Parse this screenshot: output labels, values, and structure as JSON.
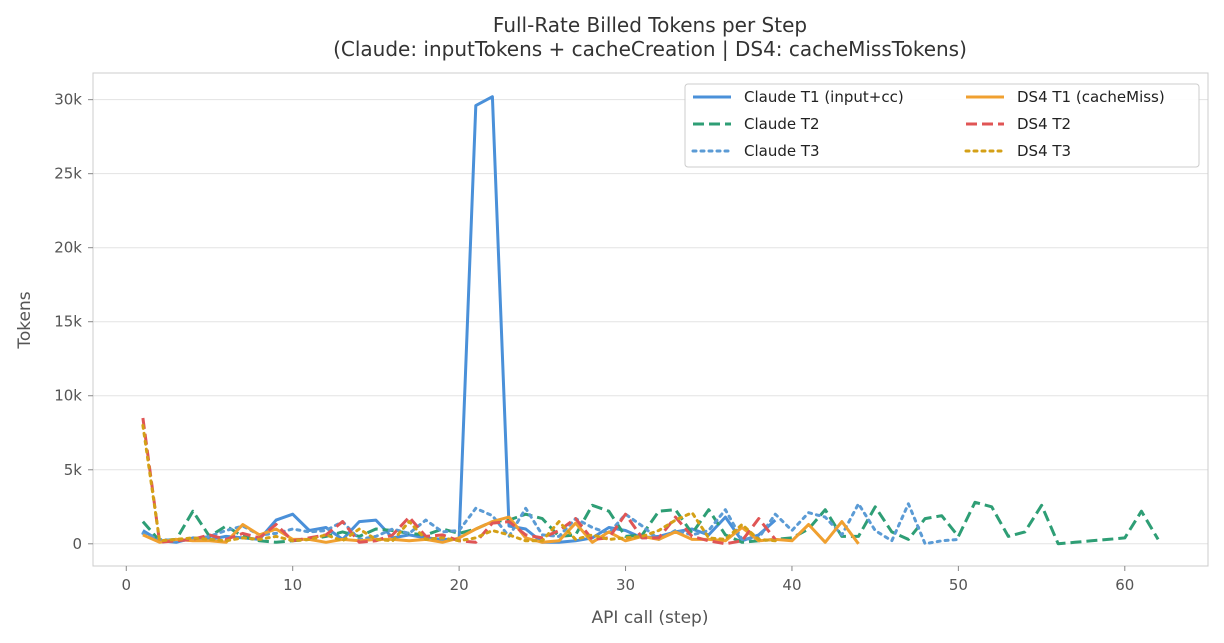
{
  "chart_data": {
    "type": "line",
    "title": "Full-Rate Billed Tokens per Step",
    "subtitle": "(Claude: inputTokens + cacheCreation  |  DS4: cacheMissTokens)",
    "xlabel": "API call (step)",
    "ylabel": "Tokens",
    "xlim": [
      -2,
      65
    ],
    "ylim": [
      -1500,
      31800
    ],
    "x_ticks": [
      0,
      10,
      20,
      30,
      40,
      50,
      60
    ],
    "x_tick_labels": [
      "0",
      "10",
      "20",
      "30",
      "40",
      "50",
      "60"
    ],
    "y_ticks": [
      0,
      5000,
      10000,
      15000,
      20000,
      25000,
      30000
    ],
    "y_tick_labels": [
      "0",
      "5k",
      "10k",
      "15k",
      "20k",
      "25k",
      "30k"
    ],
    "grid": true,
    "legend_position": "top-right",
    "series": [
      {
        "name": "Claude T1 (input+cc)",
        "color": "#4a90d9",
        "dash": "solid",
        "x": [
          1,
          2,
          3,
          4,
          5,
          6,
          7,
          8,
          9,
          10,
          11,
          12,
          13,
          14,
          15,
          16,
          17,
          18,
          19,
          20,
          21,
          22,
          23,
          24,
          25,
          26,
          27,
          28,
          29,
          30,
          31,
          32,
          33,
          34,
          35,
          36,
          37,
          38,
          39
        ],
        "y": [
          900,
          200,
          100,
          400,
          300,
          500,
          400,
          300,
          1600,
          2000,
          900,
          1100,
          300,
          1500,
          1600,
          400,
          600,
          400,
          300,
          300,
          29600,
          30200,
          1200,
          1000,
          100,
          100,
          200,
          400,
          1100,
          900,
          400,
          500,
          800,
          1000,
          600,
          1800,
          200,
          600,
          1600
        ]
      },
      {
        "name": "Claude T2",
        "color": "#2e9e75",
        "dash": "dashed",
        "x": [
          1,
          2,
          3,
          4,
          5,
          6,
          7,
          8,
          9,
          10,
          11,
          12,
          13,
          14,
          15,
          16,
          17,
          18,
          19,
          20,
          21,
          22,
          23,
          24,
          25,
          26,
          27,
          28,
          29,
          30,
          31,
          32,
          33,
          34,
          35,
          36,
          37,
          38,
          39,
          40,
          41,
          42,
          43,
          44,
          45,
          46,
          47,
          48,
          49,
          50,
          51,
          52,
          53,
          54,
          55,
          56,
          57,
          58,
          59,
          60,
          61,
          62
        ],
        "y": [
          1500,
          200,
          300,
          2200,
          500,
          1200,
          500,
          200,
          100,
          200,
          300,
          500,
          800,
          500,
          1000,
          900,
          700,
          600,
          1000,
          700,
          1000,
          1500,
          1600,
          2000,
          1700,
          500,
          600,
          2600,
          2200,
          500,
          600,
          2200,
          2300,
          700,
          2300,
          600,
          100,
          200,
          300,
          400,
          1000,
          2300,
          500,
          500,
          2500,
          800,
          300,
          1700,
          1900,
          500,
          2800,
          2500,
          500,
          800,
          2600,
          0,
          100,
          200,
          300,
          400,
          2200,
          300
        ]
      },
      {
        "name": "Claude T3",
        "color": "#5b9bd5",
        "dash": "dotted",
        "x": [
          1,
          2,
          3,
          4,
          5,
          6,
          7,
          8,
          9,
          10,
          11,
          12,
          13,
          14,
          15,
          16,
          17,
          18,
          19,
          20,
          21,
          22,
          23,
          24,
          25,
          26,
          27,
          28,
          29,
          30,
          31,
          32,
          33,
          34,
          35,
          36,
          37,
          38,
          39,
          40,
          41,
          42,
          43,
          44,
          45,
          46,
          47,
          48,
          49,
          50
        ],
        "y": [
          700,
          300,
          200,
          300,
          500,
          900,
          1200,
          600,
          700,
          1000,
          800,
          900,
          1500,
          300,
          500,
          1000,
          700,
          1600,
          800,
          900,
          2400,
          1900,
          500,
          2400,
          600,
          500,
          1700,
          1100,
          700,
          2000,
          1200,
          300,
          900,
          600,
          900,
          2300,
          300,
          400,
          2000,
          900,
          2100,
          1800,
          600,
          2700,
          900,
          200,
          2700,
          0,
          200,
          300
        ]
      },
      {
        "name": "DS4 T1 (cacheMiss)",
        "color": "#f0a030",
        "dash": "solid",
        "x": [
          1,
          2,
          3,
          4,
          5,
          6,
          7,
          8,
          9,
          10,
          11,
          12,
          13,
          14,
          15,
          16,
          17,
          18,
          19,
          20,
          21,
          22,
          23,
          24,
          25,
          26,
          27,
          28,
          29,
          30,
          31,
          32,
          33,
          34,
          35,
          36,
          37,
          38,
          39,
          40,
          41,
          42,
          43,
          44
        ],
        "y": [
          600,
          100,
          300,
          200,
          200,
          100,
          1300,
          600,
          1000,
          300,
          300,
          100,
          300,
          200,
          300,
          300,
          200,
          300,
          100,
          400,
          1000,
          1500,
          1800,
          400,
          100,
          200,
          1400,
          100,
          800,
          200,
          500,
          300,
          800,
          300,
          300,
          200,
          1100,
          200,
          300,
          200,
          1300,
          100,
          1500,
          0
        ]
      },
      {
        "name": "DS4 T2",
        "color": "#e05555",
        "dash": "dashed",
        "x": [
          1,
          2,
          3,
          4,
          5,
          6,
          7,
          8,
          9,
          10,
          11,
          12,
          13,
          14,
          15,
          16,
          17,
          18,
          19,
          20,
          21,
          22,
          23,
          24,
          25,
          26,
          27,
          28,
          29,
          30,
          31,
          32,
          33,
          34,
          35,
          36,
          37,
          38,
          39
        ],
        "y": [
          8500,
          100,
          200,
          300,
          600,
          300,
          700,
          400,
          1300,
          200,
          400,
          600,
          1500,
          100,
          200,
          600,
          1800,
          500,
          600,
          200,
          100,
          1400,
          1500,
          600,
          400,
          900,
          1700,
          300,
          400,
          2000,
          400,
          400,
          1800,
          500,
          200,
          0,
          200,
          1700,
          300
        ]
      },
      {
        "name": "DS4 T3",
        "color": "#d4a017",
        "dash": "dotted",
        "x": [
          1,
          2,
          3,
          4,
          5,
          6,
          7,
          8,
          9,
          10,
          11,
          12,
          13,
          14,
          15,
          16,
          17,
          18,
          19,
          20,
          21,
          22,
          23,
          24,
          25,
          26,
          27,
          28,
          29,
          30,
          31,
          32,
          33,
          34,
          35,
          36,
          37,
          38,
          39
        ],
        "y": [
          8000,
          200,
          300,
          400,
          300,
          200,
          400,
          300,
          500,
          200,
          300,
          600,
          200,
          1000,
          300,
          200,
          1500,
          300,
          400,
          200,
          400,
          900,
          600,
          200,
          200,
          1500,
          300,
          600,
          300,
          400,
          500,
          900,
          1600,
          2100,
          400,
          300,
          1300,
          300,
          200
        ]
      }
    ]
  }
}
